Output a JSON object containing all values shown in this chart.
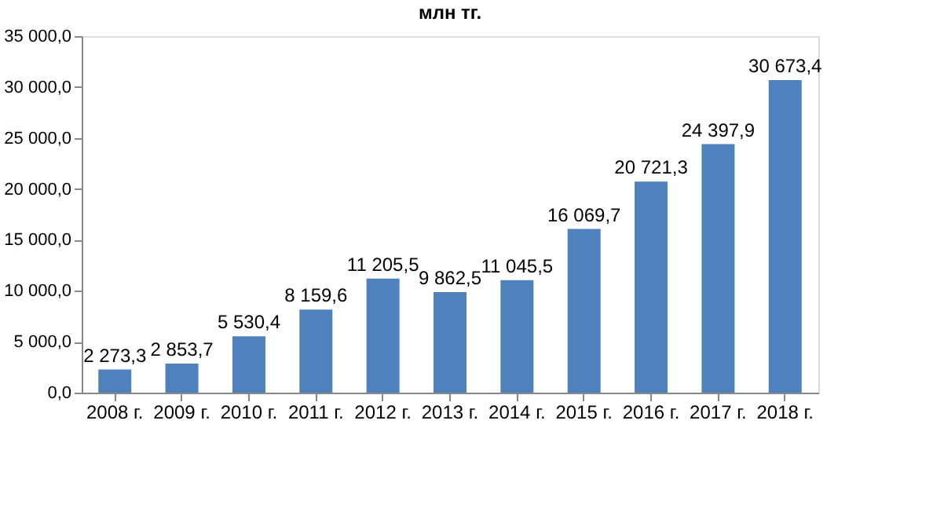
{
  "chart_data": {
    "type": "bar",
    "title": "млн тг.",
    "categories": [
      "2008 г.",
      "2009 г.",
      "2010 г.",
      "2011 г.",
      "2012 г.",
      "2013 г.",
      "2014 г.",
      "2015 г.",
      "2016 г.",
      "2017 г.",
      "2018 г."
    ],
    "values": [
      2273.3,
      2853.7,
      5530.4,
      8159.6,
      11205.5,
      9862.5,
      11045.5,
      16069.7,
      20721.3,
      24397.9,
      30673.4
    ],
    "value_labels": [
      "2 273,3",
      "2 853,7",
      "5 530,4",
      "8 159,6",
      "11 205,5",
      "9 862,5",
      "11 045,5",
      "16 069,7",
      "20 721,3",
      "24 397,9",
      "30 673,4"
    ],
    "color": "#4f81bd",
    "ylim": [
      0,
      35000
    ],
    "yticks": [
      {
        "value": 0,
        "label": "0,0"
      },
      {
        "value": 5000,
        "label": "5 000,0"
      },
      {
        "value": 10000,
        "label": "10 000,0"
      },
      {
        "value": 15000,
        "label": "15 000,0"
      },
      {
        "value": 20000,
        "label": "20 000,0"
      },
      {
        "value": 25000,
        "label": "25 000,0"
      },
      {
        "value": 30000,
        "label": "30 000,0"
      },
      {
        "value": 35000,
        "label": "35 000,0"
      }
    ],
    "grid": false
  }
}
